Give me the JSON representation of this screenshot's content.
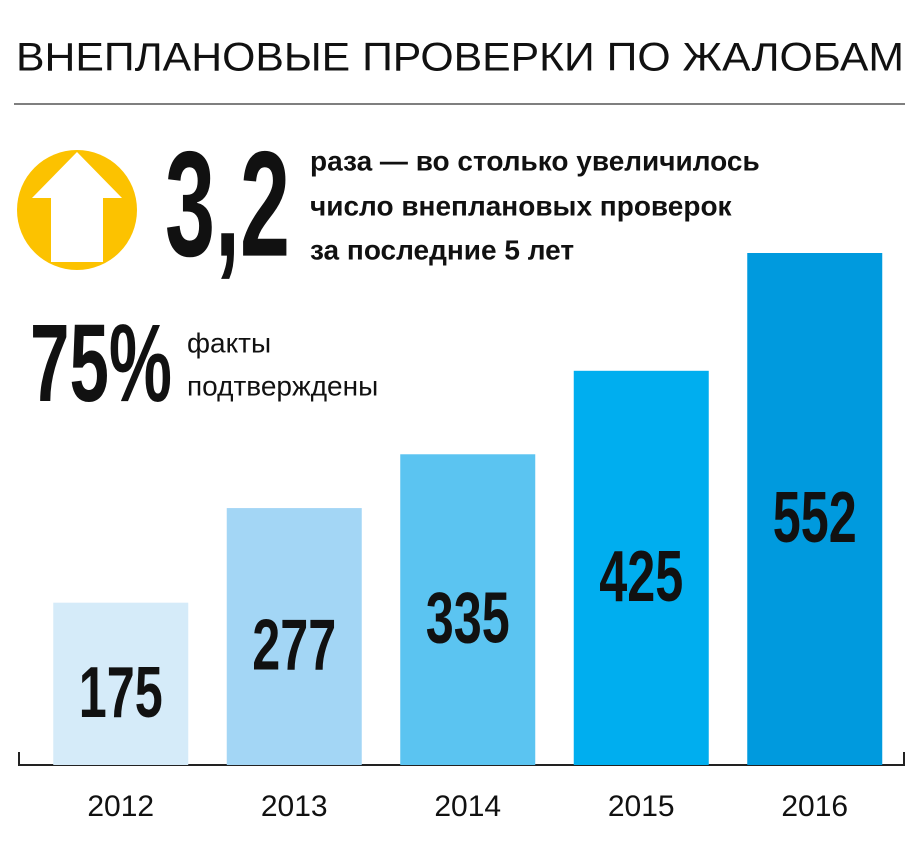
{
  "chart_data": {
    "type": "bar",
    "title": "ВНЕПЛАНОВЫЕ ПРОВЕРКИ ПО ЖАЛОБАМ",
    "annotations": {
      "growth_value": "3,2",
      "growth_text": [
        "раза — во столько увеличилось",
        "число внеплановых проверок",
        "за последние 5 лет"
      ],
      "confirmed_value": "75%",
      "confirmed_text": [
        "факты",
        "подтверждены"
      ]
    },
    "categories": [
      "2012",
      "2013",
      "2014",
      "2015",
      "2016"
    ],
    "values": [
      175,
      277,
      335,
      425,
      552
    ],
    "colors": [
      "#d5ebf9",
      "#a3d6f5",
      "#5bc4f1",
      "#00aeef",
      "#009ade"
    ]
  }
}
